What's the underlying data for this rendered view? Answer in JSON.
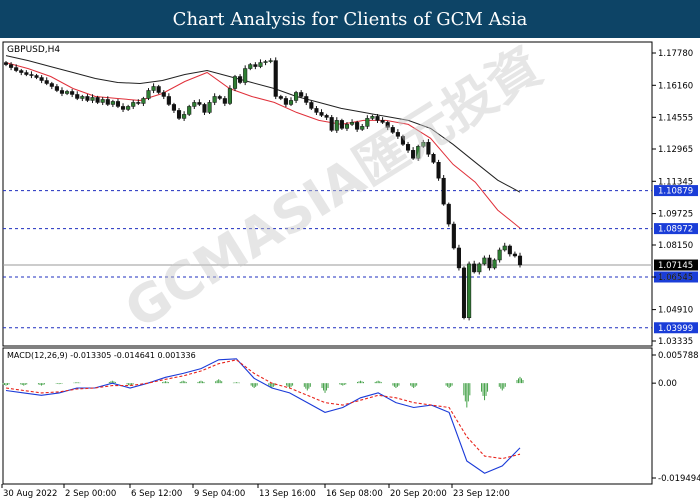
{
  "banner": {
    "title": "Chart Analysis for Clients of GCM Asia"
  },
  "watermark": {
    "text": "GCMASIA匯元投資"
  },
  "colors": {
    "bull_body": "#2e7d32",
    "bear_body": "#111111",
    "ma_fast": "#e0303a",
    "ma_slow": "#222222",
    "level_line": "#1f2fbf",
    "level_tag_bg": "#1a3dd8",
    "price_tag_bg": "#000000",
    "macd_line": "#1a3ad8",
    "signal_line": "#e8241c",
    "histogram": "#43a047",
    "banner_bg": "#0d4466"
  },
  "chart_data": [
    {
      "type": "candlestick",
      "symbol_label": "GBPUSD,H4",
      "ylim": [
        1.03335,
        1.1865
      ],
      "y_ticks": [
        "1.17780",
        "1.16160",
        "1.14555",
        "1.12965",
        "1.11345",
        "1.09725",
        "1.08150",
        "1.06545",
        "1.04910",
        "1.03335"
      ],
      "x_ticks": [
        "30 Aug 2022",
        "2 Sep 00:00",
        "6 Sep 12:00",
        "9 Sep 04:00",
        "13 Sep 16:00",
        "16 Sep 08:00",
        "20 Sep 20:00",
        "23 Sep 12:00"
      ],
      "current_price": "1.07145",
      "levels": [
        {
          "value": 1.10879,
          "label": "1.10879"
        },
        {
          "value": 1.08972,
          "label": "1.08972"
        },
        {
          "value": 1.06545,
          "label": "1.06545"
        },
        {
          "value": 1.03999,
          "label": "1.03999"
        }
      ],
      "close": [
        1.172,
        1.1705,
        1.169,
        1.168,
        1.167,
        1.1665,
        1.1655,
        1.164,
        1.1625,
        1.161,
        1.159,
        1.1575,
        1.1585,
        1.157,
        1.155,
        1.156,
        1.154,
        1.1555,
        1.153,
        1.1545,
        1.152,
        1.1535,
        1.151,
        1.1495,
        1.151,
        1.153,
        1.1525,
        1.155,
        1.159,
        1.161,
        1.158,
        1.156,
        1.152,
        1.149,
        1.145,
        1.147,
        1.151,
        1.153,
        1.152,
        1.148,
        1.153,
        1.156,
        1.155,
        1.1525,
        1.16,
        1.166,
        1.163,
        1.17,
        1.172,
        1.171,
        1.173,
        1.1735,
        1.174,
        1.156,
        1.155,
        1.152,
        1.154,
        1.158,
        1.156,
        1.153,
        1.15,
        1.148,
        1.1465,
        1.1455,
        1.139,
        1.144,
        1.14,
        1.142,
        1.143,
        1.1395,
        1.141,
        1.145,
        1.146,
        1.144,
        1.143,
        1.1405,
        1.138,
        1.136,
        1.132,
        1.129,
        1.125,
        1.131,
        1.133,
        1.127,
        1.123,
        1.115,
        1.102,
        1.092,
        1.08,
        1.07,
        1.045,
        1.072,
        1.068,
        1.072,
        1.075,
        1.07,
        1.074,
        1.079,
        1.081,
        1.077,
        1.076,
        1.0715
      ],
      "ma_fast": {
        "start_index": 0,
        "values": [
          1.173,
          1.17,
          1.166,
          1.16,
          1.156,
          1.155,
          1.154,
          1.1575,
          1.1635,
          1.168,
          1.16,
          1.156,
          1.153,
          1.148,
          1.144,
          1.142,
          1.144,
          1.144,
          1.142,
          1.135,
          1.122,
          1.113,
          1.099,
          1.09
        ]
      },
      "ma_slow": {
        "start_index": 0,
        "values": [
          1.1765,
          1.174,
          1.171,
          1.168,
          1.165,
          1.163,
          1.1625,
          1.164,
          1.167,
          1.169,
          1.166,
          1.163,
          1.16,
          1.156,
          1.153,
          1.15,
          1.148,
          1.146,
          1.144,
          1.14,
          1.132,
          1.123,
          1.114,
          1.108
        ]
      }
    },
    {
      "type": "macd",
      "label": "MACD(12,26,9) -0.013305 -0.014641 0.001336",
      "values": {
        "macd": -0.013305,
        "signal": -0.014641,
        "histogram": 0.001336
      },
      "y_ticks": [
        "0.005788",
        "0.00",
        "-0.019494"
      ],
      "ylim": [
        -0.019494,
        0.005788
      ],
      "macd_line": [
        -0.0015,
        -0.002,
        -0.0025,
        -0.002,
        -0.001,
        -0.001,
        0.0,
        -0.001,
        0.0,
        0.0012,
        0.002,
        0.003,
        0.0048,
        0.005,
        0.001,
        -0.001,
        -0.002,
        -0.004,
        -0.006,
        -0.005,
        -0.003,
        -0.002,
        -0.004,
        -0.005,
        -0.0045,
        -0.006,
        -0.016,
        -0.0185,
        -0.017,
        -0.0133
      ],
      "signal_line": [
        -0.001,
        -0.0015,
        -0.002,
        -0.0018,
        -0.0012,
        -0.001,
        -0.0005,
        -0.0005,
        0.0,
        0.0008,
        0.0015,
        0.0025,
        0.004,
        0.0048,
        0.002,
        0.0,
        -0.001,
        -0.0025,
        -0.004,
        -0.0045,
        -0.0035,
        -0.0025,
        -0.003,
        -0.004,
        -0.0045,
        -0.005,
        -0.011,
        -0.015,
        -0.0155,
        -0.0146
      ],
      "histogram": [
        -0.0005,
        -0.0005,
        -0.0005,
        -0.0002,
        0.0002,
        0.0,
        0.0005,
        -0.0005,
        0.0,
        0.0004,
        0.0005,
        0.0005,
        0.0008,
        0.0002,
        -0.001,
        -0.001,
        -0.001,
        -0.0015,
        -0.002,
        -0.0005,
        0.0005,
        0.0005,
        -0.001,
        -0.001,
        0.0,
        -0.001,
        -0.005,
        -0.0035,
        -0.0015,
        0.0013
      ]
    }
  ]
}
